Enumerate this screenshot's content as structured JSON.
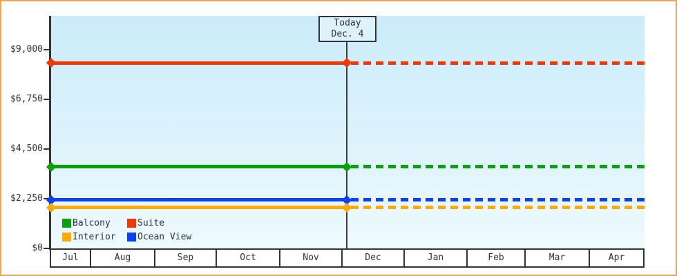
{
  "chart_data": {
    "type": "line",
    "title": "",
    "description": "Cabin price chart: constant price per cabin category, solid line before today, dotted projection after today",
    "ylim": [
      0,
      9000
    ],
    "grid": false,
    "legend_position": "bottom-left inside plot",
    "y_ticks": [
      {
        "label": "$9,000",
        "value": 9000
      },
      {
        "label": "$6,750",
        "value": 6750
      },
      {
        "label": "$4,500",
        "value": 4500
      },
      {
        "label": "$2,250",
        "value": 2250
      },
      {
        "label": "$0",
        "value": 0
      }
    ],
    "months": [
      "Jul",
      "Aug",
      "Sep",
      "Oct",
      "Nov",
      "Dec",
      "Jan",
      "Feb",
      "Mar",
      "Apr"
    ],
    "today": {
      "label": "Today",
      "date": "Dec. 4",
      "month": "Dec"
    },
    "series": [
      {
        "name": "Suite",
        "color": "#f23800",
        "value": 8400
      },
      {
        "name": "Balcony",
        "color": "#0aa10a",
        "value": 3700
      },
      {
        "name": "Ocean View",
        "color": "#0b41f2",
        "value": 2200
      },
      {
        "name": "Interior",
        "color": "#ffaa00",
        "value": 1850
      }
    ],
    "legend_order": [
      "Balcony",
      "Suite",
      "Interior",
      "Ocean View"
    ]
  },
  "colors": {
    "frame_border": "#e9a455",
    "plot_gradient_top": "#cbecfa",
    "plot_gradient_bottom": "#eefafe",
    "axis": "#333333",
    "text": "#333333",
    "today_box_bg": "#ddf2fc"
  }
}
